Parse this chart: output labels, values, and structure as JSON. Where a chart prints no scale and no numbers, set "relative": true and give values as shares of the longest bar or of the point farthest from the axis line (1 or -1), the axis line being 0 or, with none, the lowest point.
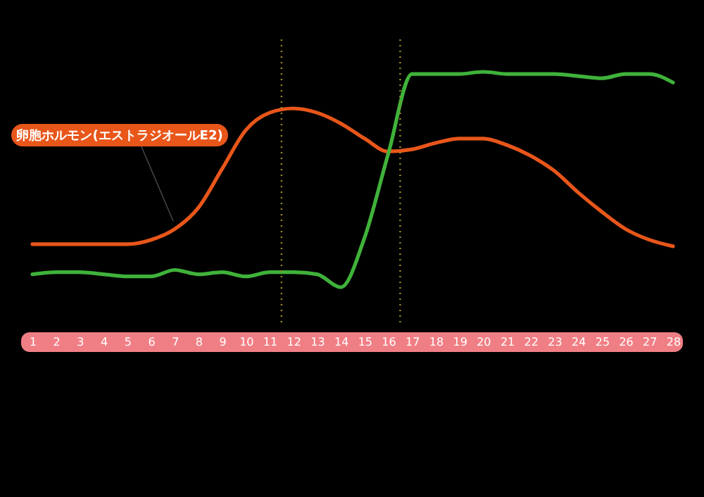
{
  "chart_data": {
    "type": "line",
    "relative": true,
    "x": [
      1,
      2,
      3,
      4,
      5,
      6,
      7,
      8,
      9,
      10,
      11,
      12,
      13,
      14,
      15,
      16,
      17,
      18,
      19,
      20,
      21,
      22,
      23,
      24,
      25,
      26,
      27,
      28
    ],
    "xlim": [
      1,
      28
    ],
    "xticks": [
      1,
      2,
      3,
      4,
      5,
      6,
      7,
      8,
      9,
      10,
      11,
      12,
      13,
      14,
      15,
      16,
      17,
      18,
      19,
      20,
      21,
      22,
      23,
      24,
      25,
      26,
      27,
      28
    ],
    "tick_labels": "x",
    "grid": false,
    "legend": false,
    "marker": "none",
    "line_style": "solid",
    "series": [
      {
        "name": "卵胞ホルモン(エストラジオールE2)",
        "color": "#e8561a",
        "values": [
          0.2,
          0.2,
          0.2,
          0.2,
          0.2,
          0.22,
          0.27,
          0.37,
          0.55,
          0.73,
          0.81,
          0.83,
          0.81,
          0.76,
          0.69,
          0.63,
          0.64,
          0.67,
          0.69,
          0.69,
          0.66,
          0.61,
          0.54,
          0.44,
          0.35,
          0.27,
          0.22,
          0.19
        ]
      },
      {
        "color": "#3fb23a",
        "values": [
          0.06,
          0.07,
          0.07,
          0.06,
          0.05,
          0.05,
          0.08,
          0.06,
          0.07,
          0.05,
          0.07,
          0.07,
          0.06,
          0.0,
          0.23,
          0.62,
          0.99,
          0.99,
          0.99,
          1.0,
          0.99,
          0.99,
          0.99,
          0.98,
          0.97,
          0.99,
          0.99,
          0.95
        ]
      }
    ],
    "ref_lines": [
      {
        "axis": "x",
        "value": 11.5,
        "color": "#9a8a2a",
        "line_style": "dotted"
      },
      {
        "axis": "x",
        "value": 16.5,
        "color": "#9a8a2a",
        "line_style": "dotted"
      }
    ]
  }
}
